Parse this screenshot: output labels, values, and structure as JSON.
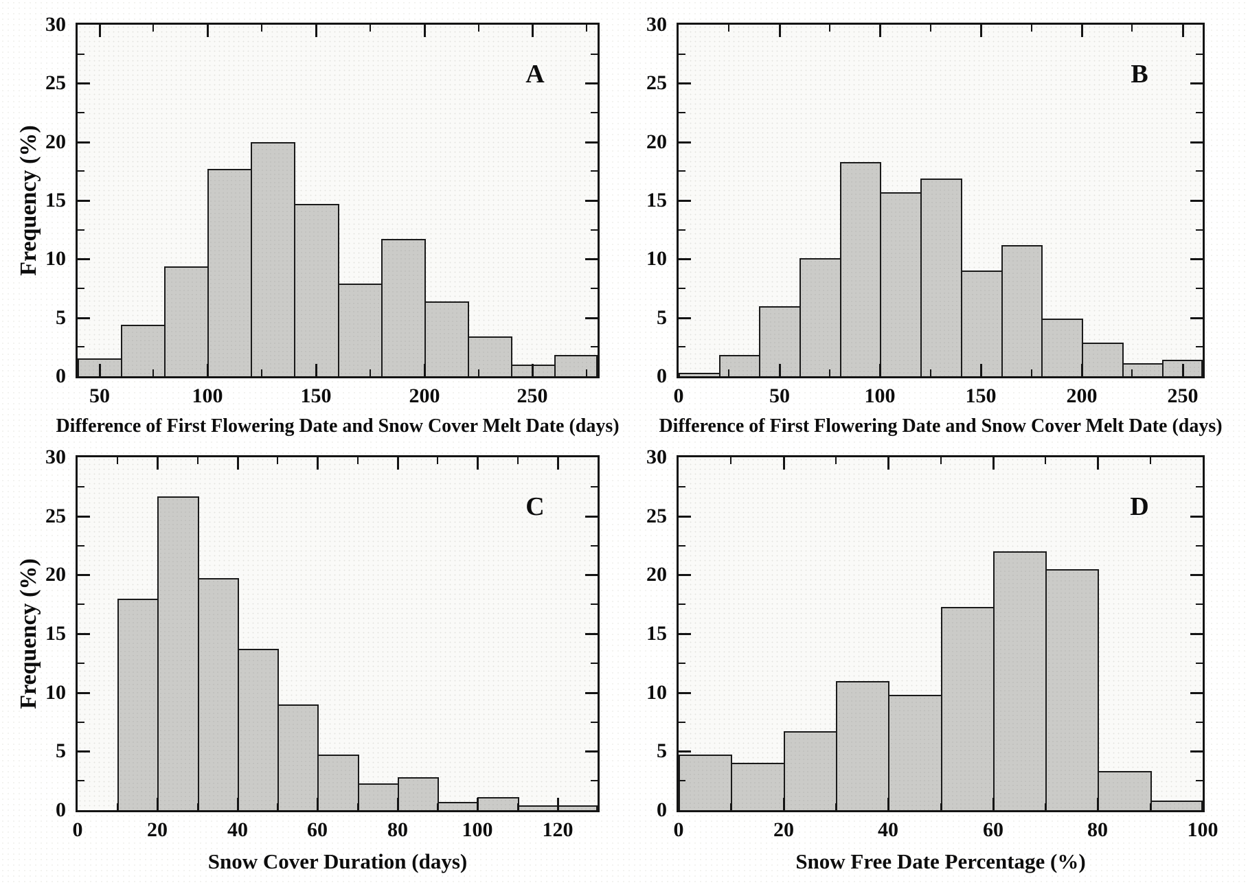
{
  "figure": {
    "kind": "2x2-histogram-figure",
    "shared_ylabel": "Frequency (%)"
  },
  "colors": {
    "bar_fill": "#cbcbc8",
    "bar_border": "#1a1a1a",
    "axis_frame": "#141414",
    "text": "#0d0d0d",
    "plot_background": "#fafaf8"
  },
  "chart_data": [
    {
      "type": "bar",
      "subtype": "histogram",
      "panel_label": "A",
      "title": "",
      "xlabel": "Difference of First Flowering Date and Snow Cover Melt Date (days)",
      "ylabel": "Frequency (%)",
      "xlim": [
        40,
        280
      ],
      "ylim": [
        0,
        30
      ],
      "bin_edges": [
        40,
        60,
        80,
        100,
        120,
        140,
        160,
        180,
        200,
        220,
        240,
        260,
        280
      ],
      "values": [
        1.5,
        4.4,
        9.4,
        17.7,
        20.0,
        14.7,
        7.9,
        11.7,
        6.4,
        3.4,
        1.0,
        1.8
      ],
      "x_major_ticks": [
        50,
        100,
        150,
        200,
        250
      ],
      "x_minor_step": 25,
      "y_major_ticks": [
        0,
        5,
        10,
        15,
        20,
        25,
        30
      ],
      "y_minor_step": 2.5,
      "grid": false,
      "legend": null
    },
    {
      "type": "bar",
      "subtype": "histogram",
      "panel_label": "B",
      "title": "",
      "xlabel": "Difference of First Flowering Date and Snow Cover Melt Date (days)",
      "ylabel": "",
      "xlim": [
        0,
        260
      ],
      "ylim": [
        0,
        30
      ],
      "bin_edges": [
        0,
        20,
        40,
        60,
        80,
        100,
        120,
        140,
        160,
        180,
        200,
        220,
        240,
        260
      ],
      "values": [
        0.3,
        1.8,
        6.0,
        10.1,
        18.3,
        15.7,
        16.9,
        9.0,
        11.2,
        4.9,
        2.9,
        1.1,
        1.4
      ],
      "x_major_ticks": [
        0,
        50,
        100,
        150,
        200,
        250
      ],
      "x_minor_step": 25,
      "y_major_ticks": [
        0,
        5,
        10,
        15,
        20,
        25,
        30
      ],
      "y_minor_step": 2.5,
      "grid": false,
      "legend": null
    },
    {
      "type": "bar",
      "subtype": "histogram",
      "panel_label": "C",
      "title": "",
      "xlabel": "Snow Cover Duration (days)",
      "ylabel": "Frequency (%)",
      "xlim": [
        0,
        130
      ],
      "ylim": [
        0,
        30
      ],
      "bin_edges": [
        10,
        20,
        30,
        40,
        50,
        60,
        70,
        80,
        90,
        100,
        110,
        120,
        130
      ],
      "values": [
        18.0,
        26.7,
        19.7,
        13.7,
        9.0,
        4.7,
        2.3,
        2.8,
        0.7,
        1.1,
        0.4,
        0.4
      ],
      "x_major_ticks": [
        0,
        20,
        40,
        60,
        80,
        100,
        120
      ],
      "x_minor_step": 10,
      "y_major_ticks": [
        0,
        5,
        10,
        15,
        20,
        25,
        30
      ],
      "y_minor_step": 2.5,
      "grid": false,
      "legend": null
    },
    {
      "type": "bar",
      "subtype": "histogram",
      "panel_label": "D",
      "title": "",
      "xlabel": "Snow Free Date Percentage (%)",
      "ylabel": "",
      "xlim": [
        0,
        100
      ],
      "ylim": [
        0,
        30
      ],
      "bin_edges": [
        0,
        10,
        20,
        30,
        40,
        50,
        60,
        70,
        80,
        90,
        100
      ],
      "values": [
        4.7,
        4.0,
        6.7,
        11.0,
        9.8,
        17.3,
        22.0,
        20.5,
        3.3,
        0.8
      ],
      "x_major_ticks": [
        0,
        20,
        40,
        60,
        80,
        100
      ],
      "x_minor_step": 10,
      "y_major_ticks": [
        0,
        5,
        10,
        15,
        20,
        25,
        30
      ],
      "y_minor_step": 2.5,
      "grid": false,
      "legend": null
    }
  ]
}
